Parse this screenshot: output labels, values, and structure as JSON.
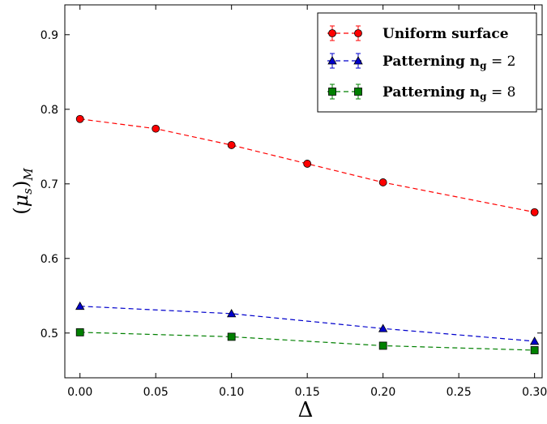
{
  "chart_data": {
    "type": "line",
    "xlabel": "Δ",
    "ylabel": "(μ_s)_M",
    "xlim": [
      -0.01,
      0.305
    ],
    "ylim": [
      0.44,
      0.94
    ],
    "x_ticks": [
      "0.00",
      "0.05",
      "0.10",
      "0.15",
      "0.20",
      "0.25",
      "0.30"
    ],
    "y_ticks": [
      "0.5",
      "0.6",
      "0.7",
      "0.8",
      "0.9"
    ],
    "grid": false,
    "legend_position": "top-right",
    "series": [
      {
        "name": "Uniform surface",
        "color": "#ff0000",
        "marker": "circle",
        "x": [
          0.0,
          0.05,
          0.1,
          0.15,
          0.2,
          0.3
        ],
        "y": [
          0.787,
          0.774,
          0.752,
          0.727,
          0.702,
          0.662
        ]
      },
      {
        "name": "Patterning n_g = 2",
        "color": "#0000cc",
        "marker": "triangle",
        "x": [
          0.0,
          0.1,
          0.2,
          0.3
        ],
        "y": [
          0.536,
          0.526,
          0.506,
          0.489
        ]
      },
      {
        "name": "Patterning n_g = 8",
        "color": "#008000",
        "marker": "square",
        "x": [
          0.0,
          0.1,
          0.2,
          0.3
        ],
        "y": [
          0.501,
          0.495,
          0.483,
          0.477
        ]
      }
    ]
  }
}
